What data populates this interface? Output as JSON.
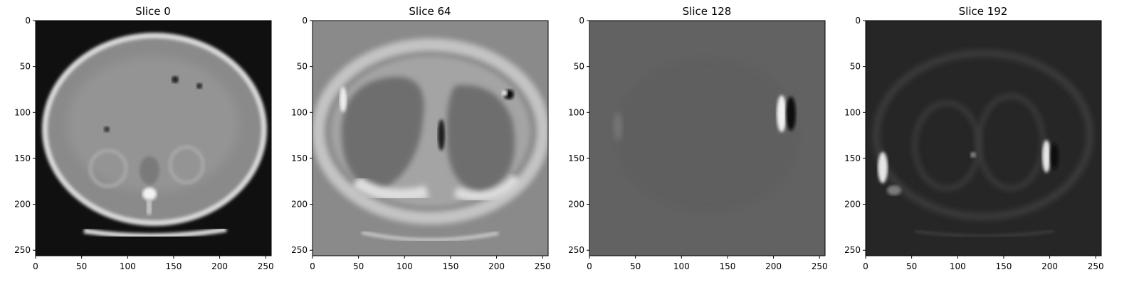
{
  "figure": {
    "panels": [
      {
        "title": "Slice 0",
        "tone": "soft-tissue",
        "background": "#101010",
        "x_ticks": [
          "0",
          "50",
          "100",
          "150",
          "200",
          "250"
        ],
        "y_ticks": [
          "0",
          "50",
          "100",
          "150",
          "200",
          "250"
        ]
      },
      {
        "title": "Slice 64",
        "tone": "lungs",
        "background": "#8a8a8a",
        "x_ticks": [
          "0",
          "50",
          "100",
          "150",
          "200",
          "250"
        ],
        "y_ticks": [
          "0",
          "50",
          "100",
          "150",
          "200",
          "250"
        ]
      },
      {
        "title": "Slice 128",
        "tone": "flat",
        "background": "#626262",
        "x_ticks": [
          "0",
          "50",
          "100",
          "150",
          "200",
          "250"
        ],
        "y_ticks": [
          "0",
          "50",
          "100",
          "150",
          "200",
          "250"
        ]
      },
      {
        "title": "Slice 192",
        "tone": "dark",
        "background": "#262626",
        "x_ticks": [
          "0",
          "50",
          "100",
          "150",
          "200",
          "250"
        ],
        "y_ticks": [
          "0",
          "50",
          "100",
          "150",
          "200",
          "250"
        ]
      }
    ]
  }
}
